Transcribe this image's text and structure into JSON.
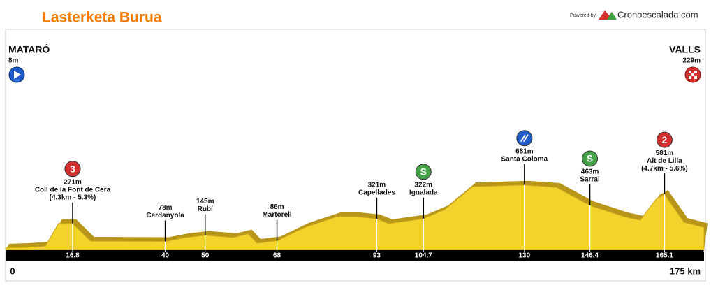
{
  "chart_data": {
    "type": "area",
    "title": "Lasterketa Burua",
    "credit": "Powered by",
    "brand": "Cronoescalada.com",
    "color": "#f2d22b",
    "start": {
      "name": "MATARÓ",
      "altitude": {
        "value": 8,
        "label": "8m"
      }
    },
    "finish": {
      "name": "VALLS",
      "altitude": {
        "value": 229,
        "label": "229m"
      }
    },
    "xlim": [
      0,
      175
    ],
    "xticks": [
      0,
      16.8,
      40,
      50,
      68,
      93,
      104.7,
      130,
      146.4,
      165.1,
      {
        "value": 175,
        "label": "175 km"
      }
    ],
    "x": [
      0,
      5,
      10,
      13.3,
      16.8,
      21.3,
      30,
      40,
      45,
      50,
      57,
      60.8,
      63,
      68,
      75,
      83,
      88,
      93,
      96,
      104.7,
      110,
      117,
      130,
      138,
      146.4,
      155,
      159,
      163,
      165.1,
      170,
      175
    ],
    "values": [
      8,
      15,
      30,
      271,
      271,
      82,
      80,
      78,
      120,
      145,
      120,
      160,
      60,
      86,
      230,
      343,
      343,
      321,
      270,
      322,
      418,
      664,
      681,
      657,
      463,
      343,
      306,
      530,
      581,
      283,
      229
    ],
    "waypoints": [
      {
        "km": 16.8,
        "altitude": {
          "value": 271,
          "label": "271m"
        },
        "name": "Coll de la Font de Cera",
        "detail": "(4.3km - 5.3%)",
        "icon": "3",
        "icon_color": "#d32f2f"
      },
      {
        "km": 40,
        "altitude": {
          "value": 78,
          "label": "78m"
        },
        "name": "Cerdanyola"
      },
      {
        "km": 50,
        "altitude": {
          "value": 145,
          "label": "145m"
        },
        "name": "Rubí"
      },
      {
        "km": 68,
        "altitude": {
          "value": 86,
          "label": "86m"
        },
        "name": "Martorell"
      },
      {
        "km": 93,
        "altitude": {
          "value": 321,
          "label": "321m"
        },
        "name": "Capellades"
      },
      {
        "km": 104.7,
        "altitude": {
          "value": 322,
          "label": "322m"
        },
        "name": "Igualada",
        "icon": "S",
        "icon_color": "#43a047"
      },
      {
        "km": 130,
        "altitude": {
          "value": 681,
          "label": "681m"
        },
        "name": "Santa Coloma",
        "icon_color": "#1e5bc6"
      },
      {
        "km": 146.4,
        "altitude": {
          "value": 463,
          "label": "463m"
        },
        "name": "Sarral",
        "icon": "S",
        "icon_color": "#43a047"
      },
      {
        "km": 165.1,
        "altitude": {
          "value": 581,
          "label": "581m"
        },
        "name": "Alt de Lilla",
        "detail": "(4.7km - 5.6%)",
        "icon": "2",
        "icon_color": "#d32f2f"
      }
    ]
  }
}
